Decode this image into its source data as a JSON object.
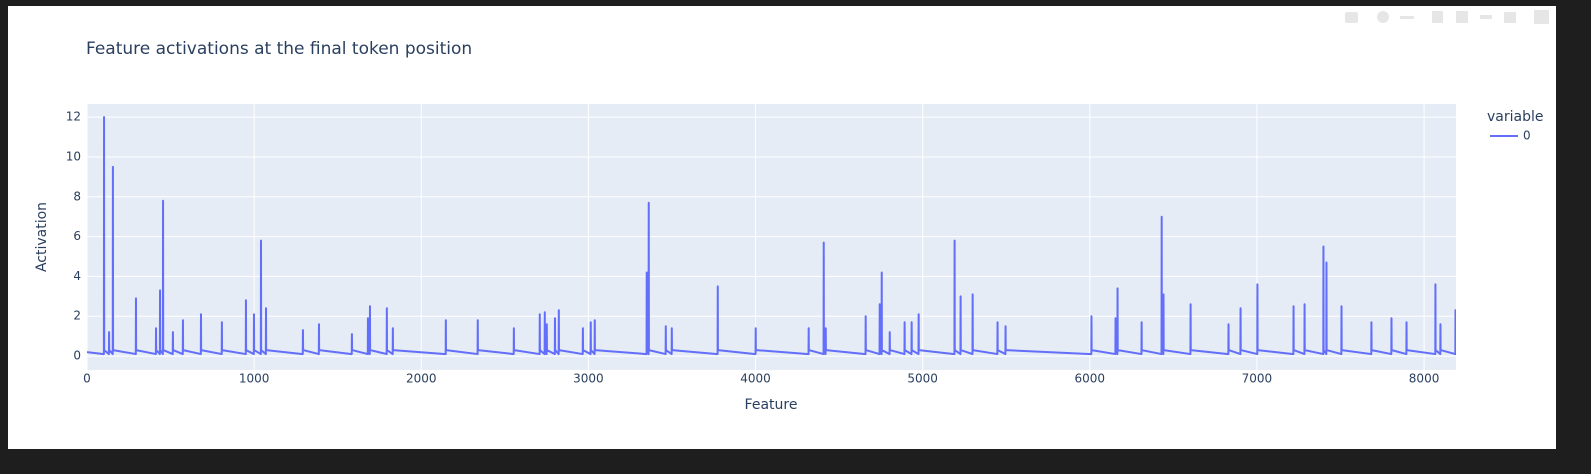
{
  "chart_data": {
    "type": "line",
    "title": "Feature activations at the final token position",
    "x_label": "Feature",
    "y_label": "Activation",
    "legend_title": "variable",
    "legend": "right",
    "grid": true,
    "xlim": [
      0,
      8191
    ],
    "xticks": [
      0,
      1000,
      2000,
      3000,
      4000,
      5000,
      6000,
      7000,
      8000
    ],
    "ylim": [
      -0.7,
      12.66
    ],
    "yticks": [
      0,
      2,
      4,
      6,
      8,
      10,
      12
    ],
    "x": [
      0,
      101,
      102,
      103,
      131,
      132,
      133,
      154,
      155,
      156,
      292,
      293,
      294,
      412,
      413,
      414,
      436,
      437,
      438,
      454,
      455,
      456,
      513,
      514,
      515,
      573,
      574,
      575,
      681,
      682,
      683,
      806,
      807,
      808,
      950,
      951,
      952,
      998,
      999,
      1000,
      1040,
      1041,
      1042,
      1070,
      1071,
      1072,
      1291,
      1292,
      1293,
      1387,
      1388,
      1389,
      1584,
      1585,
      1586,
      1680,
      1681,
      1682,
      1692,
      1693,
      1694,
      1793,
      1794,
      1795,
      1829,
      1830,
      1831,
      2146,
      2147,
      2148,
      2337,
      2338,
      2339,
      2553,
      2554,
      2555,
      2708,
      2709,
      2710,
      2738,
      2739,
      2740,
      2750,
      2751,
      2752,
      2799,
      2800,
      2801,
      2822,
      2823,
      2824,
      2966,
      2967,
      2968,
      3013,
      3014,
      3015,
      3037,
      3038,
      3039,
      3348,
      3349,
      3350,
      3360,
      3361,
      3362,
      3462,
      3463,
      3464,
      3498,
      3499,
      3500,
      3773,
      3774,
      3775,
      4000,
      4001,
      4002,
      4317,
      4318,
      4319,
      4407,
      4408,
      4409,
      4419,
      4420,
      4421,
      4658,
      4659,
      4660,
      4742,
      4743,
      4744,
      4754,
      4755,
      4756,
      4802,
      4803,
      4804,
      4891,
      4892,
      4893,
      4933,
      4934,
      4935,
      4975,
      4976,
      4977,
      5190,
      5191,
      5192,
      5226,
      5227,
      5228,
      5298,
      5299,
      5300,
      5447,
      5448,
      5449,
      5495,
      5496,
      5497,
      6009,
      6010,
      6011,
      6153,
      6154,
      6155,
      6165,
      6166,
      6167,
      6309,
      6310,
      6311,
      6429,
      6430,
      6431,
      6440,
      6441,
      6442,
      6602,
      6603,
      6604,
      6829,
      6830,
      6831,
      6901,
      6902,
      6903,
      7002,
      7003,
      7004,
      7218,
      7219,
      7220,
      7284,
      7285,
      7286,
      7397,
      7398,
      7399,
      7415,
      7416,
      7417,
      7505,
      7506,
      7507,
      7684,
      7685,
      7686,
      7804,
      7805,
      7806,
      7894,
      7895,
      7896,
      8067,
      8068,
      8069,
      8097,
      8098,
      8099,
      8187,
      8188,
      8189,
      8191
    ],
    "series": [
      {
        "name": "0",
        "color": "#636efa",
        "values": [
          0.2,
          0.1,
          12,
          0.3,
          0.1,
          1.2,
          0.3,
          0.1,
          9.5,
          0.3,
          0.1,
          2.9,
          0.3,
          0.1,
          1.4,
          0.3,
          0.1,
          3.3,
          0.3,
          0.1,
          7.8,
          0.3,
          0.1,
          1.2,
          0.3,
          0.1,
          1.8,
          0.3,
          0.1,
          2.1,
          0.3,
          0.1,
          1.7,
          0.3,
          0.1,
          2.8,
          0.3,
          0.1,
          2.1,
          0.3,
          0.1,
          5.8,
          0.3,
          0.1,
          2.4,
          0.3,
          0.1,
          1.3,
          0.3,
          0.1,
          1.6,
          0.3,
          0.1,
          1.1,
          0.3,
          0.1,
          1.9,
          0.3,
          0.1,
          2.5,
          0.3,
          0.1,
          2.4,
          0.3,
          0.1,
          1.4,
          0.3,
          0.1,
          1.8,
          0.3,
          0.1,
          1.8,
          0.3,
          0.1,
          1.4,
          0.3,
          0.1,
          2.1,
          0.3,
          0.1,
          2.2,
          0.3,
          0.1,
          1.6,
          0.3,
          0.1,
          1.9,
          0.3,
          0.1,
          2.3,
          0.3,
          0.1,
          1.4,
          0.3,
          0.1,
          1.7,
          0.3,
          0.1,
          1.8,
          0.3,
          0.1,
          4.2,
          0.3,
          0.1,
          7.7,
          0.3,
          0.1,
          1.5,
          0.3,
          0.1,
          1.4,
          0.3,
          0.1,
          3.5,
          0.3,
          0.1,
          1.4,
          0.3,
          0.1,
          1.4,
          0.3,
          0.1,
          5.7,
          0.3,
          0.1,
          1.4,
          0.3,
          0.1,
          2,
          0.3,
          0.1,
          2.6,
          0.3,
          0.1,
          4.2,
          0.3,
          0.1,
          1.2,
          0.3,
          0.1,
          1.7,
          0.3,
          0.1,
          1.7,
          0.3,
          0.1,
          2.1,
          0.3,
          0.1,
          5.8,
          0.3,
          0.1,
          3,
          0.3,
          0.1,
          3.1,
          0.3,
          0.1,
          1.7,
          0.3,
          0.1,
          1.5,
          0.3,
          0.1,
          2,
          0.3,
          0.1,
          1.9,
          0.3,
          0.1,
          3.4,
          0.3,
          0.1,
          1.7,
          0.3,
          0.1,
          7,
          0.3,
          0.1,
          3.1,
          0.3,
          0.1,
          2.6,
          0.3,
          0.1,
          1.6,
          0.3,
          0.1,
          2.4,
          0.3,
          0.1,
          3.6,
          0.3,
          0.1,
          2.5,
          0.3,
          0.1,
          2.6,
          0.3,
          0.1,
          5.5,
          0.3,
          0.1,
          4.7,
          0.3,
          0.1,
          2.5,
          0.3,
          0.1,
          1.7,
          0.3,
          0.1,
          1.9,
          0.3,
          0.1,
          1.7,
          0.3,
          0.1,
          3.6,
          0.3,
          0.1,
          1.6,
          0.3,
          0.1,
          2.3,
          0.3,
          0.2
        ]
      }
    ]
  }
}
